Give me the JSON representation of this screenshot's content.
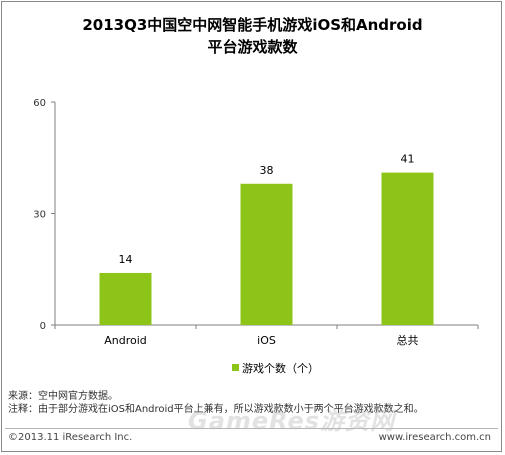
{
  "title_line1": "2013Q3中国空中网智能手机游戏iOS和Android",
  "title_line2": "平台游戏款数",
  "chart_data": {
    "type": "bar",
    "title": "2013Q3中国空中网智能手机游戏iOS和Android平台游戏款数",
    "categories": [
      "Android",
      "iOS",
      "总共"
    ],
    "series": [
      {
        "name": "游戏个数（个）",
        "values": [
          14,
          38,
          41
        ]
      }
    ],
    "ylim": [
      0,
      60
    ],
    "yticks": [
      0,
      30,
      60
    ],
    "grid": false,
    "legend": "bottom",
    "bar_color": "#8cc418"
  },
  "notes": {
    "source": "来源：空中网官方数据。",
    "note": "注释：由于部分游戏在iOS和Android平台上兼有，所以游戏款数小于两个平台游戏款数之和。"
  },
  "footer": {
    "copyright": "©2013.11 iResearch Inc.",
    "website": "www.iresearch.com.cn"
  },
  "watermark": "GameRes游资网"
}
